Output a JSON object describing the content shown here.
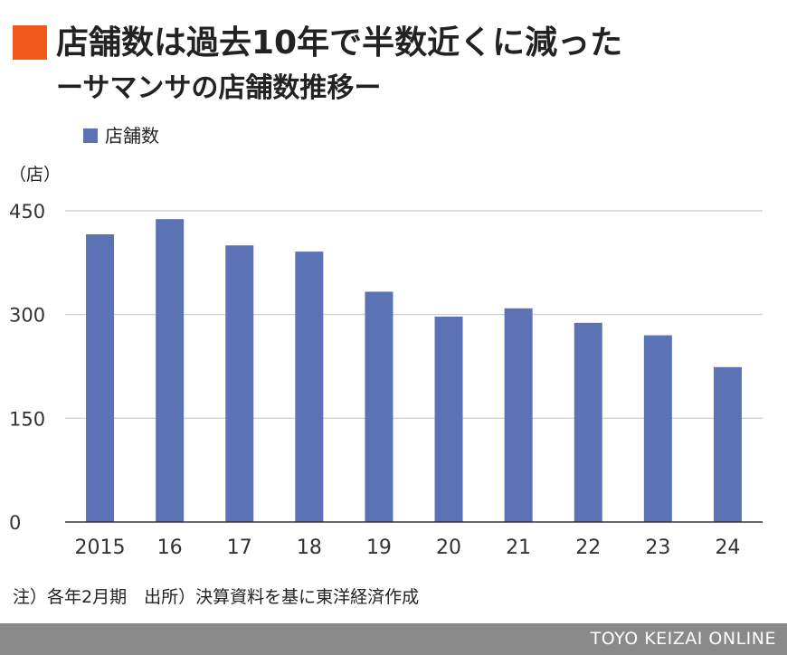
{
  "header": {
    "title": "店舗数は過去10年で半数近くに減った",
    "subtitle": "ーサマンサの店舗数推移ー"
  },
  "chart_data": {
    "type": "bar",
    "categories": [
      "2015",
      "16",
      "17",
      "18",
      "19",
      "20",
      "21",
      "22",
      "23",
      "24"
    ],
    "series": [
      {
        "name": "店舗数",
        "values": [
          416,
          438,
          400,
          391,
          333,
          297,
          309,
          288,
          270,
          224
        ]
      }
    ],
    "unit_label": "（店）",
    "yticks": [
      0,
      150,
      300,
      450
    ],
    "ylim": [
      0,
      450
    ],
    "grid": true,
    "legend_position": "top-left",
    "bar_color": "#5b72b5"
  },
  "note": "注）各年2月期　出所）決算資料を基に東洋経済作成",
  "footer": {
    "label": "TOYO KEIZAI ONLINE"
  },
  "colors": {
    "accent": "#f25a1b",
    "bar": "#5b72b5",
    "footer_bg": "#8a8a8a"
  }
}
